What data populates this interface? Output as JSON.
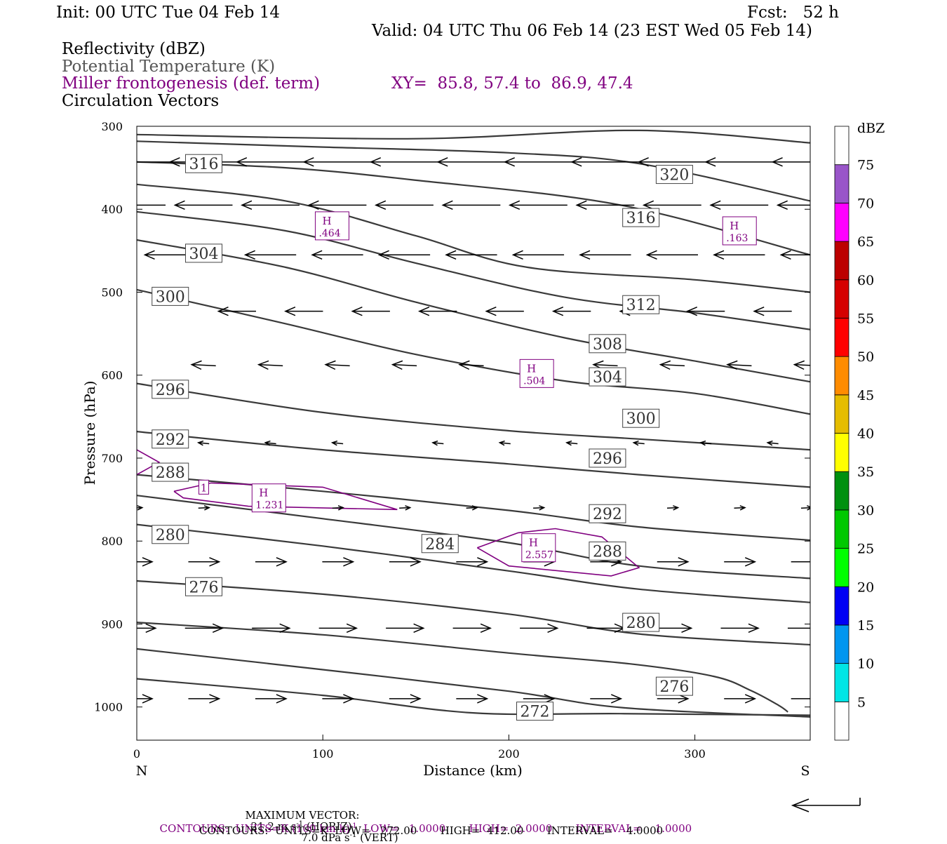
{
  "header": {
    "init": "Init: 00 UTC Tue 04 Feb 14",
    "fcst": "Fcst:   52 h",
    "valid": "Valid: 04 UTC Thu 06 Feb 14 (23 EST Wed 05 Feb 14)",
    "field1": "Reflectivity (dBZ)",
    "field2": "Potential Temperature (K)",
    "field3": "Miller frontogenesis (def. term)",
    "xy": "XY=  85.8, 57.4 to  86.9, 47.4",
    "field4": "Circulation Vectors"
  },
  "colors": {
    "theta": "#3a3a3a",
    "front": "#800080",
    "vector": "#000000"
  },
  "chart_data": {
    "type": "contour",
    "xlabel": "Distance (km)",
    "ylabel": "Pressure (hPa)",
    "xlim": [
      0,
      362
    ],
    "ylim": [
      1040,
      300
    ],
    "xticks": [
      0,
      100,
      200,
      300
    ],
    "yticks": [
      300,
      400,
      500,
      600,
      700,
      800,
      900,
      1000
    ],
    "x_left_label": "N",
    "x_right_label": "S",
    "theta_contours": [
      {
        "level": 272,
        "points": [
          [
            0,
            966
          ],
          [
            100,
            986
          ],
          [
            180,
            1007
          ],
          [
            260,
            1008
          ],
          [
            362,
            1010
          ]
        ]
      },
      {
        "level": 276,
        "points": [
          [
            0,
            930
          ],
          [
            100,
            955
          ],
          [
            200,
            981
          ],
          [
            262,
            1001
          ],
          [
            362,
            1012
          ]
        ]
      },
      {
        "level": 280,
        "points": [
          [
            0,
            898
          ],
          [
            100,
            913
          ],
          [
            200,
            935
          ],
          [
            265,
            948
          ],
          [
            310,
            963
          ],
          [
            330,
            980
          ],
          [
            345,
            998
          ],
          [
            350,
            1006
          ]
        ]
      },
      {
        "level": 276,
        "label": false,
        "points": [
          [
            0,
            848
          ],
          [
            100,
            864
          ],
          [
            200,
            888
          ],
          [
            270,
            912
          ],
          [
            362,
            925
          ]
        ]
      },
      {
        "level": 280,
        "label": false,
        "points": [
          [
            0,
            780
          ],
          [
            100,
            806
          ],
          [
            200,
            836
          ],
          [
            270,
            858
          ],
          [
            362,
            874
          ]
        ]
      },
      {
        "level": 284,
        "points": [
          [
            0,
            745
          ],
          [
            100,
            773
          ],
          [
            200,
            802
          ],
          [
            270,
            830
          ],
          [
            362,
            845
          ]
        ]
      },
      {
        "level": 288,
        "points": [
          [
            0,
            720
          ],
          [
            100,
            740
          ],
          [
            200,
            763
          ],
          [
            270,
            783
          ],
          [
            362,
            799
          ]
        ]
      },
      {
        "level": 292,
        "points": [
          [
            0,
            668
          ],
          [
            100,
            690
          ],
          [
            200,
            707
          ],
          [
            270,
            720
          ],
          [
            362,
            735
          ]
        ]
      },
      {
        "level": 296,
        "points": [
          [
            0,
            610
          ],
          [
            100,
            645
          ],
          [
            200,
            667
          ],
          [
            270,
            677
          ],
          [
            362,
            690
          ]
        ]
      },
      {
        "level": 300,
        "points": [
          [
            0,
            497
          ],
          [
            80,
            538
          ],
          [
            150,
            575
          ],
          [
            230,
            607
          ],
          [
            300,
            622
          ],
          [
            362,
            647
          ]
        ]
      },
      {
        "level": 304,
        "points": [
          [
            0,
            437
          ],
          [
            80,
            470
          ],
          [
            150,
            512
          ],
          [
            230,
            555
          ],
          [
            300,
            583
          ],
          [
            362,
            608
          ]
        ]
      },
      {
        "level": 308,
        "points": [
          [
            0,
            403
          ],
          [
            80,
            426
          ],
          [
            150,
            465
          ],
          [
            230,
            506
          ],
          [
            300,
            525
          ],
          [
            362,
            545
          ]
        ]
      },
      {
        "level": 312,
        "points": [
          [
            0,
            370
          ],
          [
            80,
            390
          ],
          [
            150,
            432
          ],
          [
            210,
            470
          ],
          [
            300,
            485
          ],
          [
            362,
            500
          ]
        ]
      },
      {
        "level": 316,
        "points": [
          [
            0,
            343
          ],
          [
            80,
            350
          ],
          [
            150,
            365
          ],
          [
            260,
            395
          ],
          [
            362,
            455
          ]
        ]
      },
      {
        "level": 320,
        "points": [
          [
            0,
            318
          ],
          [
            100,
            325
          ],
          [
            200,
            332
          ],
          [
            270,
            345
          ],
          [
            362,
            390
          ]
        ]
      },
      {
        "level": 324,
        "label": false,
        "points": [
          [
            0,
            310
          ],
          [
            150,
            315
          ],
          [
            270,
            305
          ],
          [
            362,
            320
          ]
        ]
      }
    ],
    "theta_labels": [
      {
        "text": "316",
        "x": 36,
        "p": 345
      },
      {
        "text": "320",
        "x": 289,
        "p": 358
      },
      {
        "text": "316",
        "x": 271,
        "p": 410
      },
      {
        "text": "304",
        "x": 36,
        "p": 453
      },
      {
        "text": "300",
        "x": 18,
        "p": 505
      },
      {
        "text": "312",
        "x": 271,
        "p": 515
      },
      {
        "text": "308",
        "x": 253,
        "p": 562
      },
      {
        "text": "304",
        "x": 253,
        "p": 602
      },
      {
        "text": "300",
        "x": 271,
        "p": 652
      },
      {
        "text": "296",
        "x": 18,
        "p": 617
      },
      {
        "text": "292",
        "x": 18,
        "p": 677
      },
      {
        "text": "296",
        "x": 253,
        "p": 700
      },
      {
        "text": "288",
        "x": 18,
        "p": 717
      },
      {
        "text": "292",
        "x": 253,
        "p": 767
      },
      {
        "text": "280",
        "x": 18,
        "p": 792
      },
      {
        "text": "284",
        "x": 163,
        "p": 803
      },
      {
        "text": "288",
        "x": 253,
        "p": 812
      },
      {
        "text": "276",
        "x": 36,
        "p": 855
      },
      {
        "text": "280",
        "x": 271,
        "p": 898
      },
      {
        "text": "276",
        "x": 289,
        "p": 975
      },
      {
        "text": "272",
        "x": 214,
        "p": 1005
      }
    ],
    "frontogenesis": {
      "highs": [
        {
          "label": "H",
          "value": ".464",
          "x": 105,
          "p": 420
        },
        {
          "label": "H",
          "value": ".163",
          "x": 324,
          "p": 426
        },
        {
          "label": "H",
          "value": ".504",
          "x": 215,
          "p": 598
        },
        {
          "label": "H",
          "value": "1.231",
          "x": 71,
          "p": 748
        },
        {
          "label": "H",
          "value": "2.557",
          "x": 216,
          "p": 808
        }
      ],
      "contour_label": {
        "text": "1",
        "x": 36,
        "p": 735
      },
      "contours": [
        [
          [
            20,
            740
          ],
          [
            40,
            730
          ],
          [
            100,
            735
          ],
          [
            140,
            762
          ],
          [
            60,
            758
          ],
          [
            25,
            748
          ],
          [
            20,
            740
          ]
        ],
        [
          [
            183,
            808
          ],
          [
            205,
            790
          ],
          [
            225,
            785
          ],
          [
            250,
            795
          ],
          [
            270,
            832
          ],
          [
            255,
            842
          ],
          [
            200,
            830
          ],
          [
            183,
            808
          ]
        ],
        [
          [
            0,
            690
          ],
          [
            12,
            705
          ],
          [
            0,
            720
          ]
        ]
      ]
    },
    "vector_rows": [
      {
        "p": 343,
        "xs": [
          0,
          36,
          72,
          108,
          144,
          180,
          216,
          252,
          288,
          324,
          360
        ],
        "u": -0.95,
        "w": 0.0
      },
      {
        "p": 395,
        "xs": [
          0,
          36,
          72,
          108,
          144,
          180,
          216,
          252,
          288,
          324,
          360
        ],
        "u": -0.8,
        "w": 0.0
      },
      {
        "p": 455,
        "xs": [
          18,
          72,
          108,
          144,
          180,
          216,
          252,
          288,
          324,
          360
        ],
        "u": -0.7,
        "w": 0.0
      },
      {
        "p": 523,
        "xs": [
          54,
          90,
          126,
          162,
          198,
          234,
          270,
          306,
          342
        ],
        "u": -0.5,
        "w": 0.0
      },
      {
        "p": 588,
        "xs": [
          36,
          72,
          108,
          144,
          180,
          216,
          252,
          288,
          324,
          360
        ],
        "u": -0.3,
        "w": 0.05
      },
      {
        "p": 682,
        "xs": [
          36,
          72,
          108,
          162,
          198,
          234,
          270,
          306,
          342
        ],
        "u": -0.1,
        "w": 0.1
      },
      {
        "p": 760,
        "xs": [
          0,
          36,
          108,
          144,
          180,
          216,
          252,
          288,
          324,
          360
        ],
        "u": 0.1,
        "w": 0.05
      },
      {
        "p": 825,
        "xs": [
          0,
          36,
          72,
          108,
          144,
          180,
          216,
          252,
          288,
          324,
          360
        ],
        "u": 0.4,
        "w": 0.0
      },
      {
        "p": 905,
        "xs": [
          0,
          36,
          72,
          108,
          144,
          180,
          216,
          252,
          288,
          324,
          360
        ],
        "u": 0.5,
        "w": 0.0
      },
      {
        "p": 990,
        "xs": [
          0,
          36,
          72,
          108,
          144,
          180,
          216,
          252,
          288,
          324,
          360
        ],
        "u": 0.4,
        "w": 0.0
      }
    ],
    "colorbar": {
      "title": "dBZ",
      "levels": [
        "5",
        "10",
        "15",
        "20",
        "25",
        "30",
        "35",
        "40",
        "45",
        "50",
        "55",
        "60",
        "65",
        "70",
        "75"
      ],
      "colors": [
        "#ffffff",
        "#00e5e5",
        "#0096f0",
        "#0000f5",
        "#00ff00",
        "#00c800",
        "#00900f",
        "#ffff00",
        "#e5bd00",
        "#ff8c00",
        "#ff0000",
        "#d50000",
        "#bc0000",
        "#ff00ff",
        "#9955c9",
        "#ffffff"
      ]
    }
  },
  "footer": {
    "maxvec_label": "MAXIMUM VECTOR:",
    "maxvec_h": "21.2 m s",
    "maxvec_h_exp": "-1",
    "maxvec_h_suffix": " (HORIZ)",
    "maxvec_v": "7.0 dPa s",
    "maxvec_v_exp": "-1",
    "maxvec_v_suffix": " (VERT)",
    "c1_prefix": "CONTOURS:  UNITS=K (100 km h)",
    "c1_exp": "-1",
    "c1_rest": "  LOW=   1.0000       HIGH=  2.0000       INTERVAL=    1.0000",
    "c2": "CONTOURS:  UNITS=K  LOW=   272.00       HIGH=  412.00       INTERVAL=    4.0000"
  }
}
